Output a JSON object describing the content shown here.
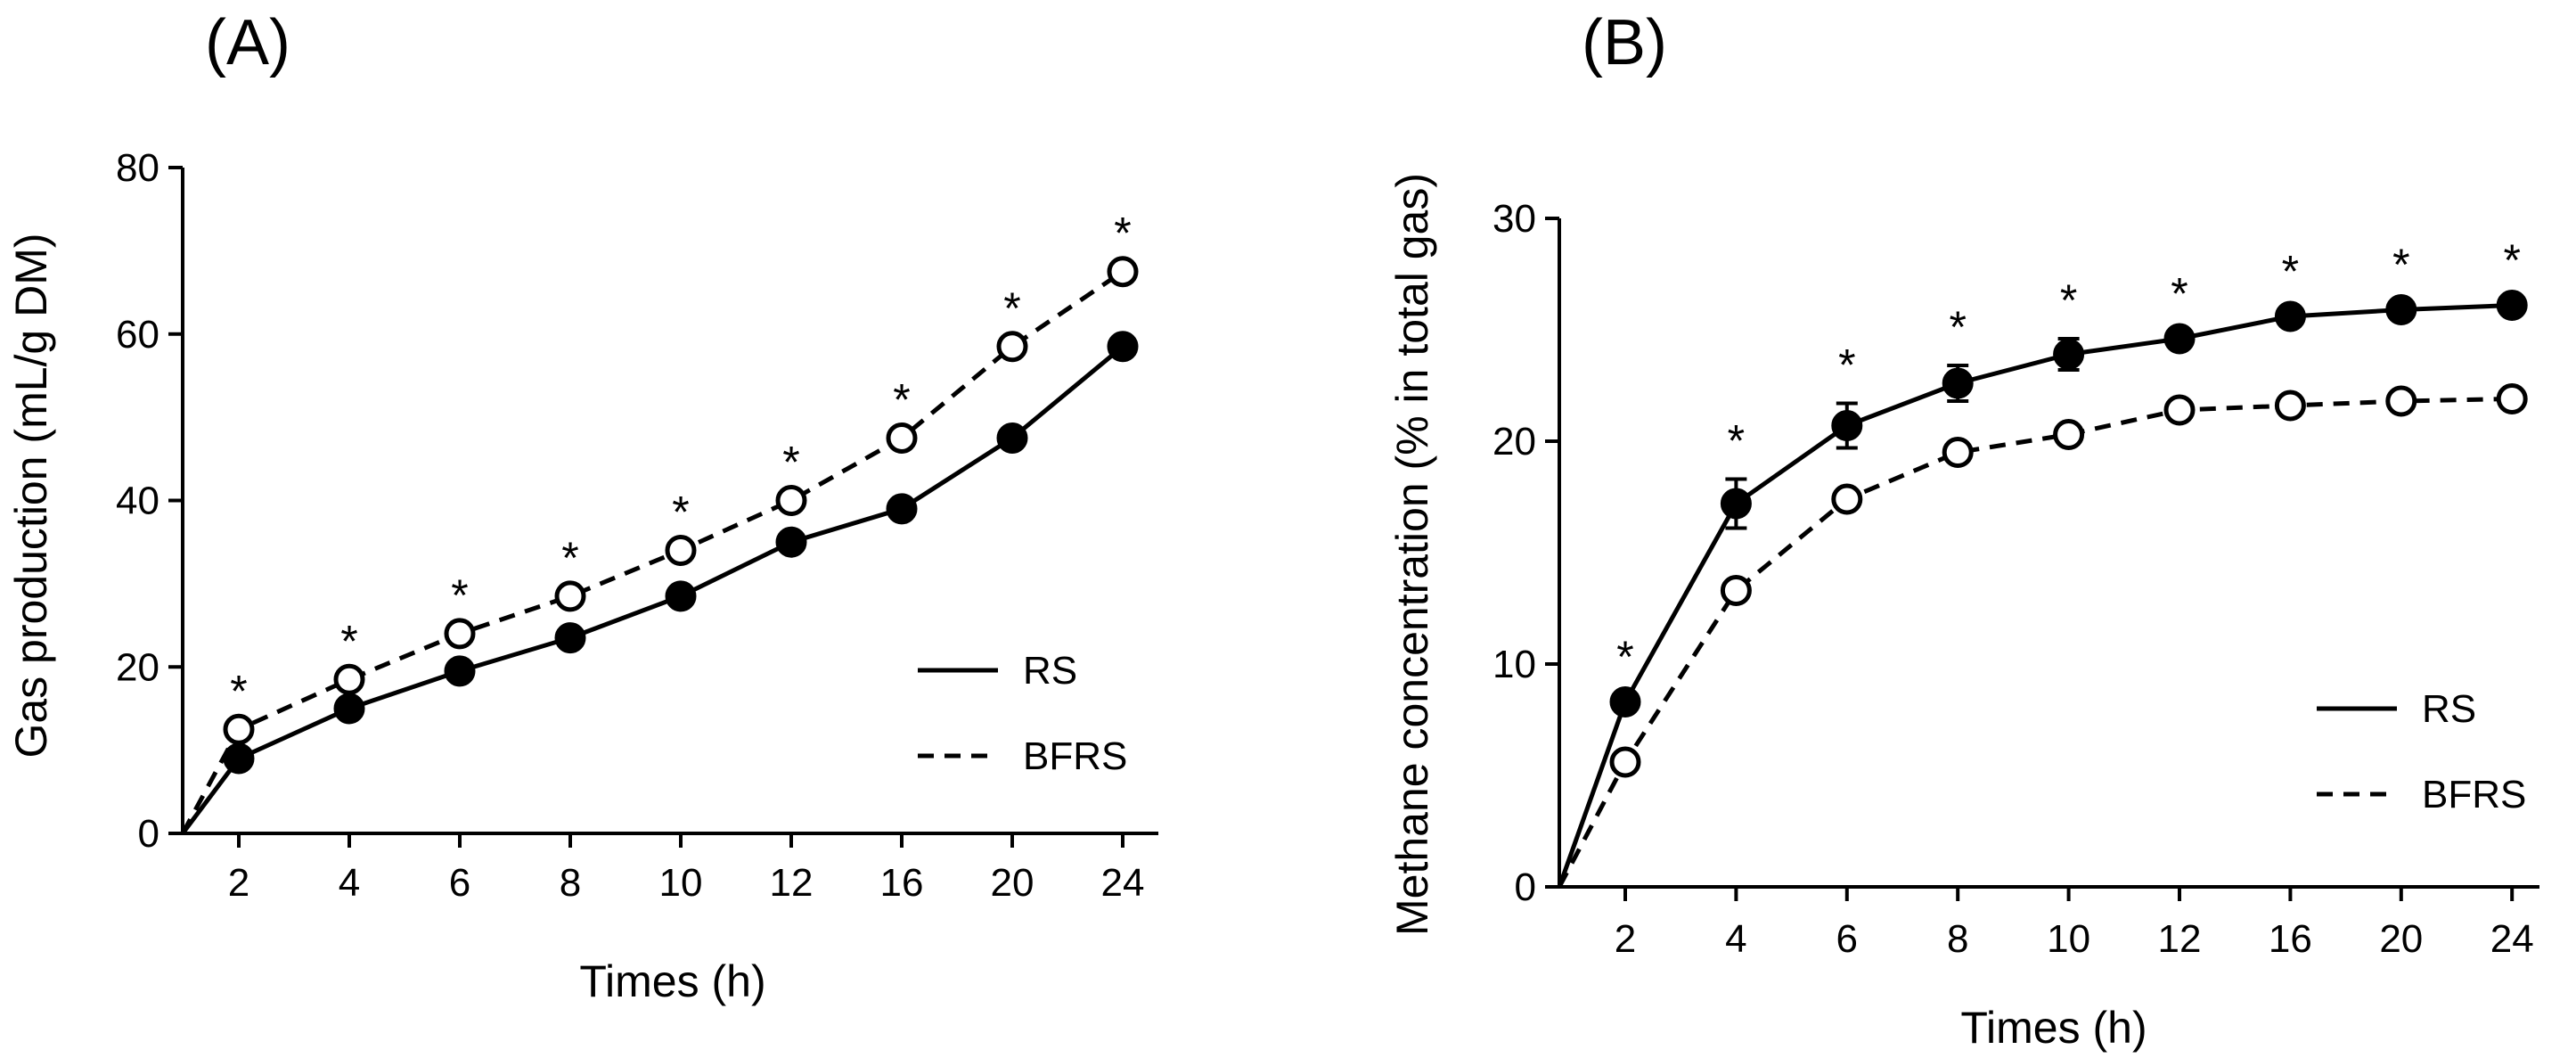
{
  "chart_data": [
    {
      "type": "line",
      "panel_label": "(A)",
      "title": "",
      "xlabel": "Times (h)",
      "ylabel": "Gas production (mL/g DM)",
      "categories": [
        "2",
        "4",
        "6",
        "8",
        "10",
        "12",
        "16",
        "20",
        "24"
      ],
      "ylim": [
        0,
        80
      ],
      "yticks": [
        "0",
        "20",
        "40",
        "60",
        "80"
      ],
      "grid": false,
      "legend_position": "bottom-right",
      "series": [
        {
          "name": "RS",
          "style": "solid",
          "marker": "filled-circle",
          "color": "#000000",
          "values": [
            9,
            15,
            19.5,
            23.5,
            28.5,
            35,
            39,
            47.5,
            58.5
          ]
        },
        {
          "name": "BFRS",
          "style": "dashed",
          "marker": "open-circle",
          "color": "#000000",
          "values": [
            12.5,
            18.5,
            24,
            28.5,
            34,
            40,
            47.5,
            58.5,
            67.5
          ]
        }
      ],
      "significance_marker": "*",
      "significant_indices": [
        0,
        1,
        2,
        3,
        4,
        5,
        6,
        7,
        8
      ]
    },
    {
      "type": "line",
      "panel_label": "(B)",
      "title": "",
      "xlabel": "Times (h)",
      "ylabel": "Methane concentration (% in total gas)",
      "categories": [
        "2",
        "4",
        "6",
        "8",
        "10",
        "12",
        "16",
        "20",
        "24"
      ],
      "ylim": [
        0,
        30
      ],
      "yticks": [
        "0",
        "10",
        "20",
        "30"
      ],
      "grid": false,
      "legend_position": "bottom-right",
      "series": [
        {
          "name": "RS",
          "style": "solid",
          "marker": "filled-circle",
          "color": "#000000",
          "values": [
            8.3,
            17.2,
            20.7,
            22.6,
            23.9,
            24.6,
            25.6,
            25.9,
            26.1
          ],
          "errors": [
            0.3,
            1.1,
            1.0,
            0.8,
            0.7,
            0.3,
            0.3,
            0.3,
            0.3
          ]
        },
        {
          "name": "BFRS",
          "style": "dashed",
          "marker": "open-circle",
          "color": "#000000",
          "values": [
            5.6,
            13.3,
            17.4,
            19.5,
            20.3,
            21.4,
            21.6,
            21.8,
            21.9
          ],
          "errors": [
            0.2,
            0.3,
            0.3,
            0.3,
            0.3,
            0.2,
            0.2,
            0.2,
            0.2
          ]
        }
      ],
      "significance_marker": "*",
      "significant_indices": [
        0,
        1,
        2,
        3,
        4,
        5,
        6,
        7,
        8
      ]
    }
  ]
}
